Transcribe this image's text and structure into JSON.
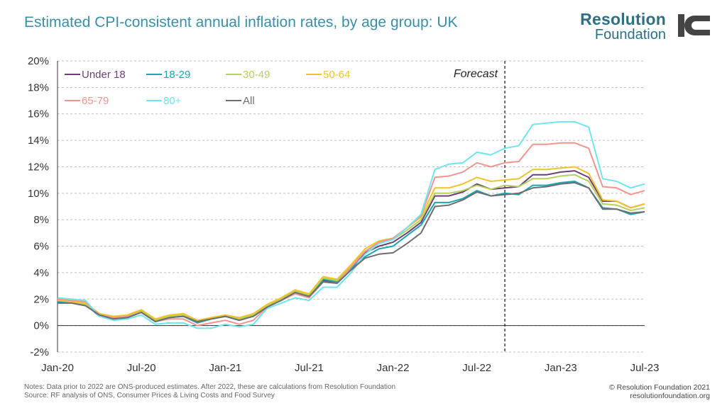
{
  "header": {
    "title": "Estimated CPI-consistent annual inflation rates, by age group: UK",
    "brand_line1": "Resolution",
    "brand_line2": "Foundation",
    "logo_icon": "ic-logo-icon"
  },
  "footer": {
    "note1": "Notes: Data prior to 2022 are ONS-produced estimates. After 2022, these are calculations from Resolution Foundation",
    "note2": "Source: RF analysis of ONS, Consumer Prices & Living Costs and Food Survey",
    "copyright": "© Resolution Foundation 2021",
    "website": "resolutionfoundation.org"
  },
  "chart_data": {
    "type": "line",
    "ylim": [
      -2,
      20
    ],
    "yticks": [
      -2,
      0,
      2,
      4,
      6,
      8,
      10,
      12,
      14,
      16,
      18,
      20
    ],
    "ytick_labels": [
      "-2%",
      "0%",
      "2%",
      "4%",
      "6%",
      "8%",
      "10%",
      "12%",
      "14%",
      "16%",
      "18%",
      "20%"
    ],
    "xtick_labels": [
      "Jan-20",
      "Jul-20",
      "Jan-21",
      "Jul-21",
      "Jan-22",
      "Jul-22",
      "Jan-23",
      "Jul-23"
    ],
    "xtick_index": [
      0,
      6,
      12,
      18,
      24,
      30,
      36,
      42
    ],
    "x_count": 43,
    "grid": true,
    "legend_position": "top-left",
    "annotation": {
      "text": "Forecast",
      "x_index": 32
    },
    "series": [
      {
        "name": "Under 18",
        "color": "#6b3f74",
        "values": [
          1.8,
          1.8,
          1.6,
          0.8,
          0.5,
          0.6,
          1.1,
          0.4,
          0.6,
          0.8,
          0.3,
          0.5,
          0.7,
          0.5,
          0.7,
          1.4,
          1.9,
          2.5,
          2.3,
          3.4,
          3.3,
          4.4,
          5.5,
          6.0,
          6.3,
          7.0,
          7.8,
          9.8,
          9.8,
          10.1,
          10.7,
          10.3,
          10.4,
          10.5,
          11.4,
          11.4,
          11.6,
          11.7,
          11.2,
          9.4,
          9.4,
          8.9,
          9.2
        ]
      },
      {
        "name": "18-29",
        "color": "#1aa6b0",
        "values": [
          1.8,
          1.8,
          1.6,
          0.7,
          0.5,
          0.6,
          1.0,
          0.3,
          0.6,
          0.7,
          0.2,
          0.5,
          0.7,
          0.4,
          0.7,
          1.4,
          2.0,
          2.6,
          2.2,
          3.5,
          3.3,
          4.3,
          5.2,
          5.8,
          6.0,
          6.8,
          7.6,
          9.3,
          9.3,
          9.6,
          10.2,
          9.8,
          10.0,
          9.9,
          10.6,
          10.6,
          10.8,
          10.9,
          10.4,
          8.9,
          8.8,
          8.4,
          8.6
        ]
      },
      {
        "name": "30-49",
        "color": "#b5d15a",
        "values": [
          1.9,
          1.8,
          1.6,
          0.8,
          0.6,
          0.7,
          1.1,
          0.4,
          0.7,
          0.8,
          0.3,
          0.6,
          0.7,
          0.5,
          0.8,
          1.5,
          2.0,
          2.6,
          2.3,
          3.6,
          3.4,
          4.5,
          5.6,
          6.2,
          6.5,
          7.2,
          8.0,
          10.0,
          10.0,
          10.2,
          10.6,
          10.3,
          10.6,
          10.5,
          11.1,
          11.1,
          11.3,
          11.4,
          10.9,
          9.2,
          9.1,
          8.7,
          8.9
        ]
      },
      {
        "name": "50-64",
        "color": "#f2c22a",
        "values": [
          1.9,
          1.8,
          1.7,
          0.9,
          0.7,
          0.8,
          1.2,
          0.5,
          0.8,
          0.9,
          0.4,
          0.6,
          0.8,
          0.6,
          0.9,
          1.6,
          2.1,
          2.7,
          2.4,
          3.7,
          3.5,
          4.6,
          5.8,
          6.4,
          6.6,
          7.4,
          8.2,
          10.4,
          10.4,
          10.7,
          11.2,
          10.9,
          11.0,
          11.1,
          11.8,
          11.8,
          11.9,
          12.0,
          11.5,
          9.5,
          9.4,
          8.9,
          9.2
        ]
      },
      {
        "name": "65-79",
        "color": "#f4948e",
        "values": [
          2.0,
          1.9,
          1.8,
          0.8,
          0.6,
          0.7,
          1.0,
          0.3,
          0.5,
          0.5,
          0.0,
          0.2,
          0.4,
          0.1,
          0.4,
          1.4,
          1.9,
          2.4,
          2.1,
          3.3,
          3.2,
          4.4,
          5.6,
          6.3,
          6.6,
          7.4,
          8.3,
          11.2,
          11.3,
          11.6,
          12.3,
          12.0,
          12.3,
          12.4,
          13.7,
          13.7,
          13.8,
          13.8,
          13.4,
          10.5,
          10.4,
          9.9,
          10.2
        ]
      },
      {
        "name": "80+",
        "color": "#6ee6ee",
        "values": [
          2.1,
          2.0,
          1.9,
          0.7,
          0.4,
          0.5,
          0.8,
          0.1,
          0.2,
          0.2,
          -0.2,
          -0.2,
          0.1,
          -0.1,
          0.1,
          1.3,
          1.7,
          2.1,
          1.9,
          2.9,
          2.9,
          4.0,
          5.4,
          6.2,
          6.5,
          7.4,
          8.4,
          11.8,
          12.2,
          12.3,
          13.1,
          12.9,
          13.4,
          13.6,
          15.2,
          15.3,
          15.4,
          15.4,
          15.0,
          11.1,
          10.9,
          10.4,
          10.7
        ]
      },
      {
        "name": "All",
        "color": "#6e6e6e",
        "values": [
          1.7,
          1.7,
          1.5,
          0.8,
          0.5,
          0.6,
          1.0,
          0.3,
          0.6,
          0.7,
          0.3,
          0.5,
          0.7,
          0.4,
          0.7,
          1.4,
          1.9,
          2.5,
          2.2,
          3.3,
          3.2,
          4.2,
          5.1,
          5.4,
          5.5,
          6.2,
          7.0,
          9.0,
          9.1,
          9.5,
          10.1,
          9.8,
          9.9,
          10.0,
          10.4,
          10.5,
          10.7,
          10.8,
          10.4,
          8.8,
          8.8,
          8.5,
          8.6
        ]
      }
    ]
  }
}
